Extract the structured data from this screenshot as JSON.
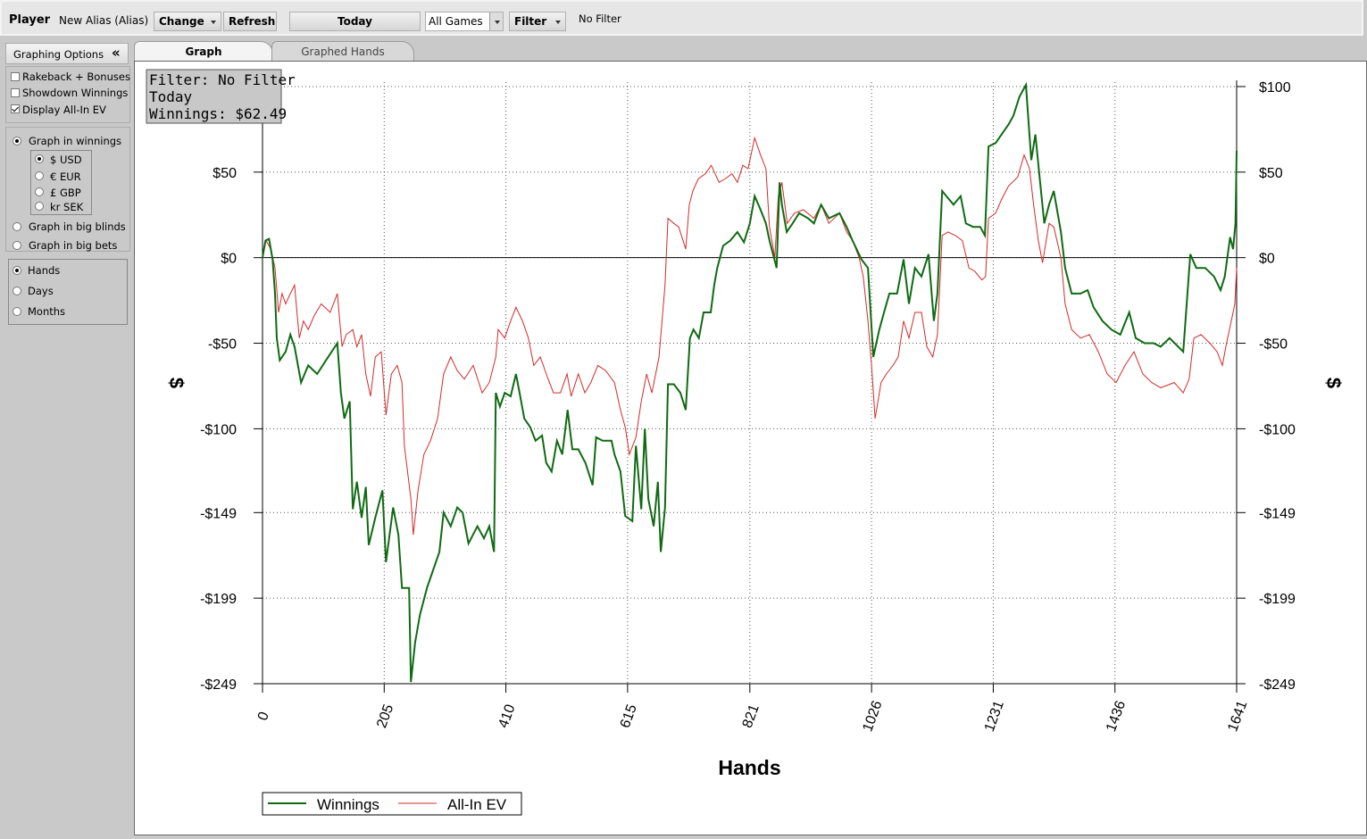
{
  "toolbar": {
    "player_label": "Player",
    "alias": "New Alias (Alias)",
    "change": "Change",
    "refresh": "Refresh",
    "date": "Today",
    "games": "All Games",
    "filter": "Filter",
    "filter_status": "No Filter"
  },
  "sidebar": {
    "title": "Graphing Options",
    "checkboxes": [
      {
        "label": "Rakeback + Bonuses",
        "checked": false
      },
      {
        "label": "Showdown Winnings",
        "checked": false
      },
      {
        "label": "Display All-In EV",
        "checked": true
      }
    ],
    "units": [
      {
        "label": "Graph in winnings",
        "selected": true
      },
      {
        "label": "Graph in big blinds",
        "selected": false
      },
      {
        "label": "Graph in big bets",
        "selected": false
      }
    ],
    "currencies": [
      {
        "label": "$ USD",
        "selected": true
      },
      {
        "label": "€ EUR",
        "selected": false
      },
      {
        "label": "£ GBP",
        "selected": false
      },
      {
        "label": "kr SEK",
        "selected": false
      }
    ],
    "x_axis": [
      {
        "label": "Hands",
        "selected": true
      },
      {
        "label": "Days",
        "selected": false
      },
      {
        "label": "Months",
        "selected": false
      }
    ]
  },
  "tabs": [
    {
      "label": "Graph",
      "active": true
    },
    {
      "label": "Graphed Hands",
      "active": false
    }
  ],
  "chart_data": {
    "type": "line",
    "annotations": [
      "Filter: No Filter",
      "Today",
      "Winnings: $62.49"
    ],
    "xlabel": "Hands",
    "ylabel": "$",
    "y2label": "$",
    "xlim": [
      0,
      1641
    ],
    "xticks": [
      0,
      205,
      410,
      615,
      821,
      1026,
      1231,
      1436,
      1641
    ],
    "ylim": [
      -249,
      102.6
    ],
    "yticks": [
      {
        "value": 100,
        "label": "$100"
      },
      {
        "value": 50,
        "label": "$50"
      },
      {
        "value": 0,
        "label": "$0"
      },
      {
        "value": -50,
        "label": "-$50"
      },
      {
        "value": -100,
        "label": "-$100"
      },
      {
        "value": -149,
        "label": "-$149"
      },
      {
        "value": -199,
        "label": "-$199"
      },
      {
        "value": -249,
        "label": "-$249"
      }
    ],
    "y2lim": [
      -249,
      102.6
    ],
    "y2ticks": [
      {
        "value": 100,
        "label": "$100"
      },
      {
        "value": 50,
        "label": "$50"
      },
      {
        "value": 0,
        "label": "$0"
      },
      {
        "value": -50,
        "label": "-$50"
      },
      {
        "value": -100,
        "label": "-$100"
      },
      {
        "value": -149,
        "label": "-$149"
      },
      {
        "value": -199,
        "label": "-$199"
      },
      {
        "value": -249,
        "label": "-$249"
      }
    ],
    "grid": true,
    "zero_line": true,
    "legend": "bottom-left",
    "series": [
      {
        "name": "Winnings",
        "color": "#0f6a12",
        "x": [
          0,
          5,
          11,
          17,
          21,
          24,
          29,
          39,
          47,
          54,
          65,
          77,
          92,
          107,
          126,
          132,
          138,
          147,
          152,
          159,
          167,
          174,
          179,
          190,
          202,
          208,
          220,
          229,
          235,
          247,
          250,
          257,
          265,
          277,
          287,
          298,
          305,
          317,
          328,
          337,
          347,
          362,
          373,
          382,
          390,
          393,
          400,
          408,
          418,
          427,
          433,
          441,
          451,
          460,
          471,
          478,
          487,
          496,
          505,
          514,
          522,
          532,
          544,
          556,
          562,
          573,
          588,
          593,
          603,
          611,
          623,
          629,
          638,
          644,
          650,
          659,
          666,
          671,
          678,
          683,
          693,
          704,
          713,
          720,
          726,
          735,
          743,
          755,
          761,
          766,
          776,
          788,
          800,
          811,
          821,
          829,
          839,
          848,
          854,
          866,
          871,
          875,
          883,
          893,
          904,
          919,
          929,
          941,
          954,
          972,
          984,
          994,
          1009,
          1020,
          1029,
          1039,
          1047,
          1056,
          1069,
          1080,
          1089,
          1099,
          1110,
          1122,
          1131,
          1137,
          1145,
          1152,
          1164,
          1176,
          1185,
          1197,
          1209,
          1217,
          1223,
          1235,
          1245,
          1257,
          1265,
          1275,
          1286,
          1295,
          1302,
          1310,
          1317,
          1325,
          1333,
          1345,
          1352,
          1363,
          1378,
          1390,
          1400,
          1415,
          1430,
          1445,
          1460,
          1471,
          1486,
          1501,
          1513,
          1528,
          1551,
          1563,
          1573,
          1588,
          1603,
          1614,
          1621,
          1630,
          1635,
          1639,
          1641
        ],
        "values": [
          0,
          10,
          11,
          -1,
          -21,
          -47,
          -60,
          -55,
          -45,
          -52,
          -73,
          -63,
          -68,
          -60,
          -50,
          -79,
          -94,
          -84,
          -147,
          -131,
          -152,
          -134,
          -168,
          -152,
          -136,
          -178,
          -146,
          -162,
          -193,
          -193,
          -248,
          -225,
          -209,
          -193,
          -183,
          -172,
          -149,
          -157,
          -146,
          -149,
          -167,
          -157,
          -164,
          -157,
          -172,
          -79,
          -87,
          -79,
          -81,
          -68,
          -79,
          -94,
          -99,
          -107,
          -104,
          -120,
          -125,
          -107,
          -115,
          -89,
          -112,
          -112,
          -120,
          -133,
          -105,
          -107,
          -107,
          -115,
          -125,
          -151,
          -154,
          -110,
          -147,
          -100,
          -141,
          -157,
          -131,
          -172,
          -146,
          -74,
          -74,
          -79,
          -89,
          -47,
          -42,
          -47,
          -32,
          -32,
          -16,
          -6,
          7,
          10,
          15,
          9,
          20,
          36,
          28,
          20,
          10,
          -6,
          44,
          31,
          15,
          20,
          26,
          23,
          20,
          31,
          23,
          26,
          18,
          10,
          -1,
          -6,
          -58,
          -42,
          -32,
          -21,
          -21,
          -1,
          -27,
          -6,
          -11,
          2,
          -37,
          -21,
          39,
          36,
          31,
          36,
          20,
          18,
          18,
          13,
          65,
          67,
          72,
          78,
          83,
          94,
          101,
          57,
          72,
          44,
          20,
          31,
          39,
          15,
          -6,
          -21,
          -21,
          -19,
          -29,
          -37,
          -42,
          -45,
          -32,
          -47,
          -50,
          -50,
          -52,
          -47,
          -55,
          2,
          -6,
          -6,
          -11,
          -19,
          -11,
          12,
          5,
          20,
          62.49
        ]
      },
      {
        "name": "All-In EV",
        "color": "#d42a2a",
        "x": [
          0,
          6,
          14,
          21,
          27,
          33,
          39,
          47,
          54,
          62,
          69,
          77,
          87,
          99,
          114,
          126,
          134,
          141,
          152,
          159,
          167,
          174,
          182,
          190,
          200,
          208,
          217,
          227,
          235,
          239,
          250,
          254,
          262,
          272,
          283,
          295,
          305,
          317,
          328,
          340,
          355,
          370,
          382,
          393,
          397,
          408,
          418,
          427,
          438,
          448,
          457,
          468,
          478,
          490,
          502,
          513,
          520,
          532,
          543,
          553,
          565,
          578,
          593,
          603,
          611,
          618,
          629,
          638,
          647,
          656,
          668,
          678,
          683,
          693,
          701,
          713,
          719,
          725,
          734,
          746,
          756,
          769,
          779,
          791,
          800,
          809,
          818,
          829,
          839,
          848,
          854,
          863,
          869,
          875,
          884,
          896,
          911,
          929,
          941,
          954,
          972,
          984,
          994,
          1005,
          1012,
          1020,
          1026,
          1032,
          1042,
          1051,
          1062,
          1071,
          1080,
          1089,
          1099,
          1110,
          1119,
          1129,
          1137,
          1145,
          1155,
          1167,
          1179,
          1190,
          1200,
          1212,
          1218,
          1223,
          1235,
          1245,
          1257,
          1272,
          1283,
          1292,
          1299,
          1307,
          1314,
          1325,
          1333,
          1345,
          1352,
          1363,
          1378,
          1393,
          1408,
          1423,
          1438,
          1453,
          1468,
          1483,
          1498,
          1513,
          1536,
          1551,
          1561,
          1569,
          1581,
          1596,
          1608,
          1617,
          1624,
          1632,
          1638,
          1641
        ],
        "values": [
          0,
          10,
          5,
          -6,
          -32,
          -21,
          -27,
          -21,
          -16,
          -47,
          -37,
          -42,
          -34,
          -27,
          -32,
          -21,
          -52,
          -45,
          -42,
          -52,
          -45,
          -68,
          -81,
          -58,
          -55,
          -92,
          -68,
          -63,
          -73,
          -110,
          -141,
          -162,
          -136,
          -115,
          -107,
          -94,
          -68,
          -58,
          -66,
          -71,
          -63,
          -79,
          -73,
          -58,
          -42,
          -47,
          -37,
          -29,
          -37,
          -47,
          -63,
          -58,
          -68,
          -79,
          -79,
          -68,
          -81,
          -68,
          -79,
          -73,
          -63,
          -66,
          -73,
          -89,
          -99,
          -115,
          -105,
          -84,
          -68,
          -79,
          -58,
          -16,
          23,
          20,
          18,
          5,
          31,
          39,
          46,
          49,
          54,
          44,
          46,
          49,
          44,
          54,
          52,
          70,
          60,
          52,
          18,
          0,
          36,
          44,
          20,
          26,
          28,
          23,
          31,
          20,
          26,
          15,
          10,
          0,
          -11,
          -37,
          -63,
          -94,
          -73,
          -68,
          -63,
          -58,
          -37,
          -47,
          -32,
          -32,
          -52,
          -58,
          -45,
          13,
          15,
          13,
          10,
          -6,
          -8,
          -13,
          -11,
          23,
          26,
          34,
          42,
          47,
          60,
          52,
          31,
          10,
          -3,
          20,
          18,
          0,
          -27,
          -42,
          -47,
          -45,
          -55,
          -68,
          -73,
          -63,
          -55,
          -68,
          -73,
          -76,
          -73,
          -79,
          -71,
          -47,
          -45,
          -50,
          -55,
          -63,
          -50,
          -37,
          -27,
          -6
        ]
      }
    ]
  }
}
